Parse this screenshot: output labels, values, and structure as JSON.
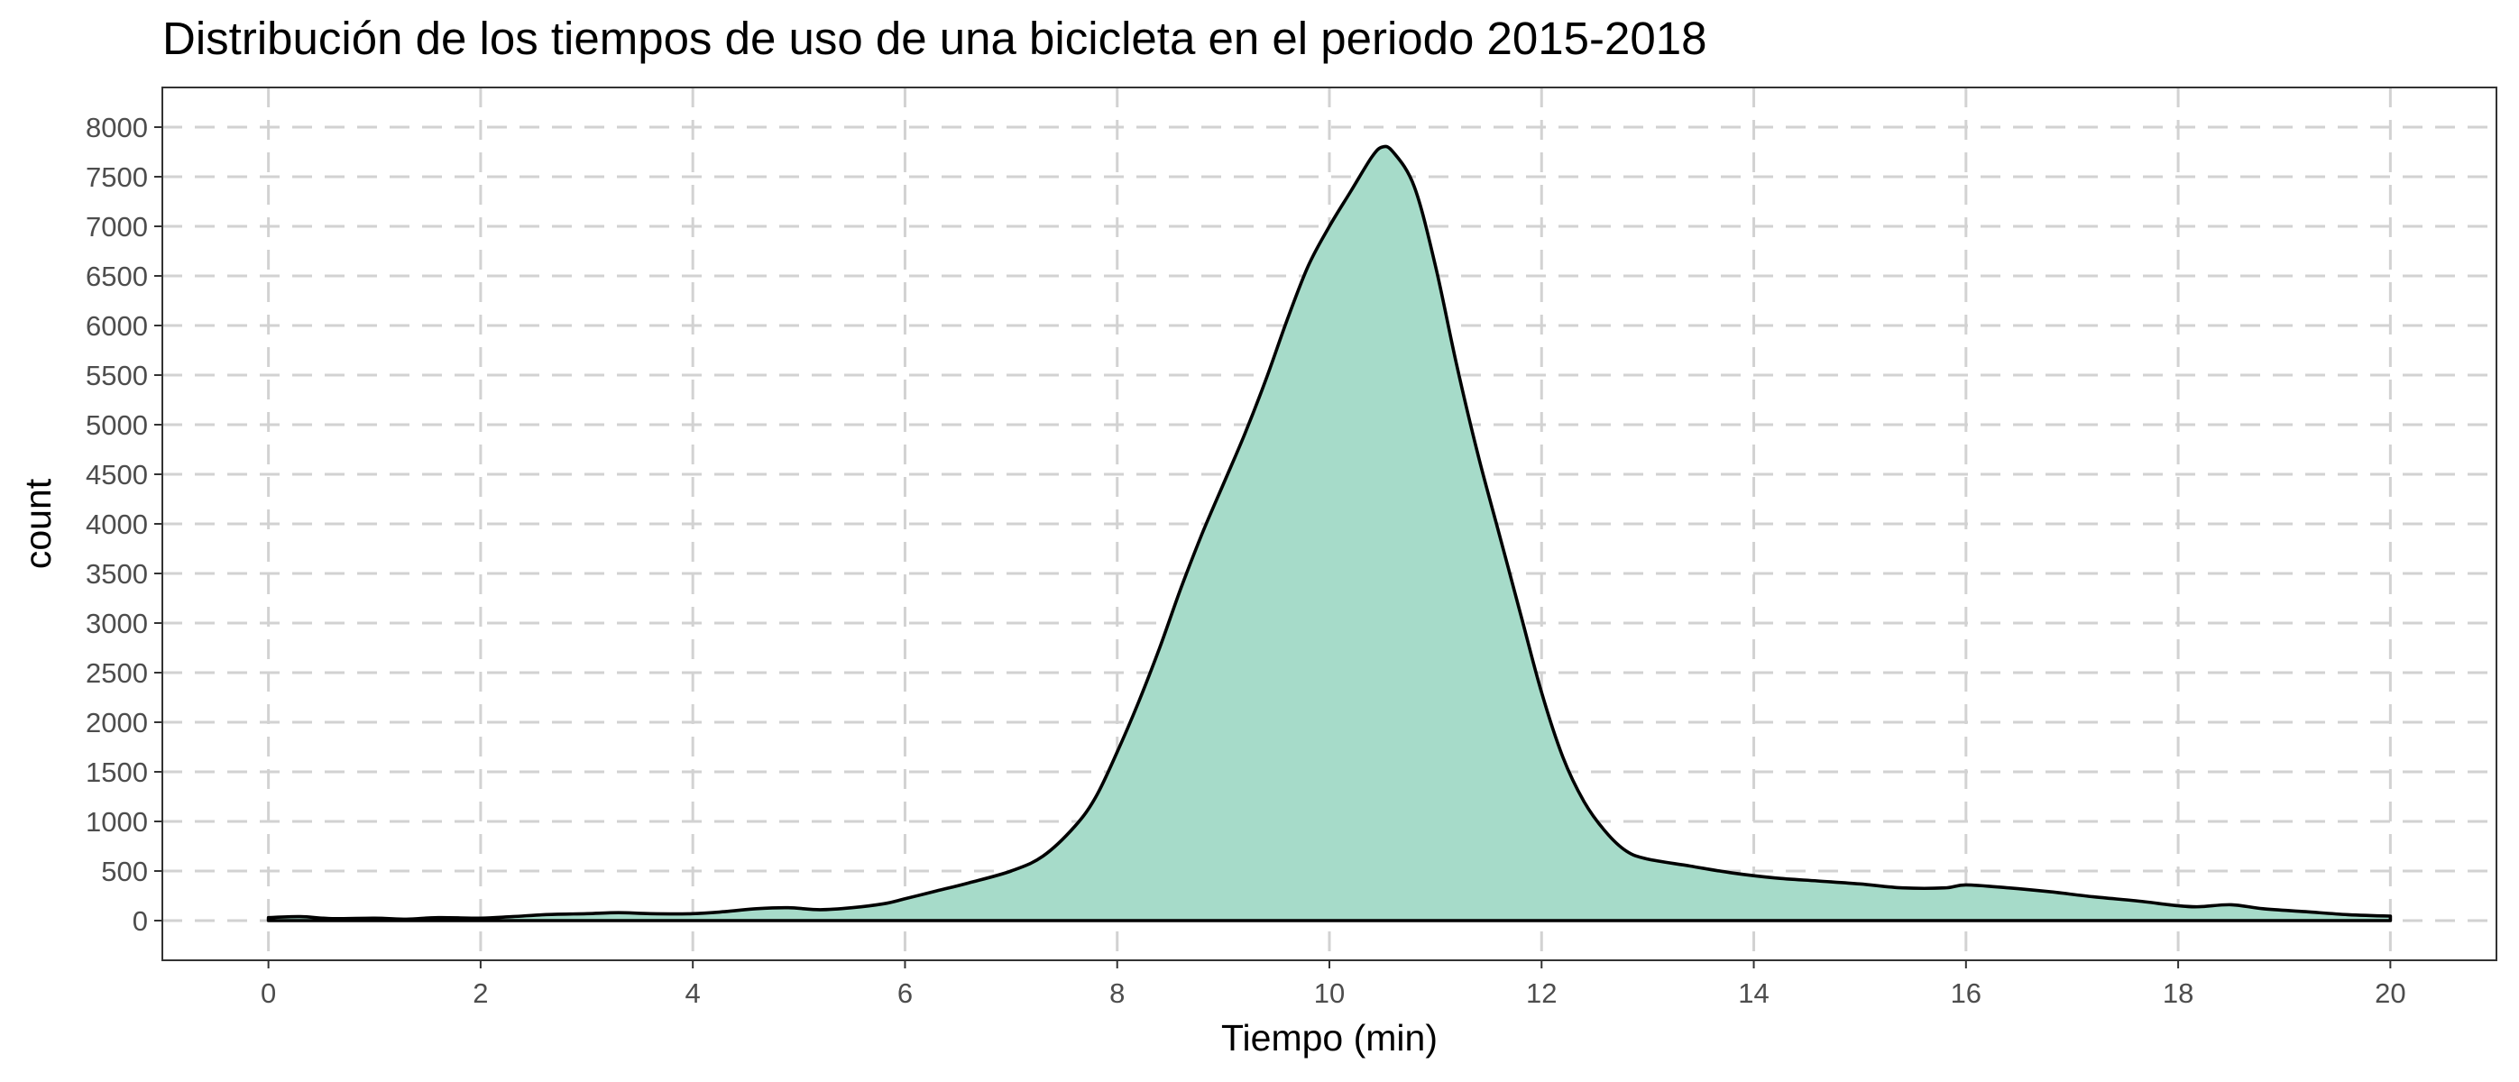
{
  "chart_data": {
    "type": "area",
    "title": "Distribución de los tiempos de uso de una bicicleta en el periodo 2015-2018",
    "xlabel": "Tiempo (min)",
    "ylabel": "count",
    "xlim": [
      -1,
      21
    ],
    "ylim": [
      -400,
      8400
    ],
    "x_ticks": [
      0,
      2,
      4,
      6,
      8,
      10,
      12,
      14,
      16,
      18,
      20
    ],
    "y_ticks": [
      0,
      500,
      1000,
      1500,
      2000,
      2500,
      3000,
      3500,
      4000,
      4500,
      5000,
      5500,
      6000,
      6500,
      7000,
      7500,
      8000
    ],
    "grid": true,
    "legend": "none",
    "fill_color": "#a6dbc9",
    "line_color": "#000000",
    "series": [
      {
        "x": [
          0,
          0.3,
          0.6,
          1,
          1.3,
          1.6,
          2,
          2.3,
          2.6,
          3,
          3.3,
          3.6,
          4,
          4.3,
          4.6,
          4.9,
          5.2,
          5.5,
          5.8,
          6,
          6.3,
          6.6,
          7,
          7.3,
          7.6,
          7.8,
          8,
          8.2,
          8.4,
          8.6,
          8.8,
          9,
          9.2,
          9.4,
          9.6,
          9.8,
          10,
          10.2,
          10.4,
          10.5,
          10.6,
          10.8,
          11,
          11.2,
          11.4,
          11.6,
          11.8,
          12,
          12.2,
          12.4,
          12.6,
          12.8,
          13,
          13.4,
          13.8,
          14.2,
          14.6,
          15,
          15.4,
          15.8,
          16,
          16.4,
          16.8,
          17.2,
          17.6,
          18,
          18.2,
          18.5,
          18.8,
          19.2,
          19.6,
          20
        ],
        "y": [
          30,
          40,
          20,
          25,
          15,
          30,
          25,
          40,
          60,
          70,
          80,
          70,
          70,
          90,
          120,
          130,
          110,
          130,
          170,
          220,
          300,
          380,
          500,
          650,
          950,
          1250,
          1700,
          2200,
          2750,
          3350,
          3900,
          4400,
          4900,
          5450,
          6050,
          6600,
          7000,
          7350,
          7700,
          7800,
          7750,
          7400,
          6600,
          5600,
          4700,
          3900,
          3100,
          2300,
          1650,
          1200,
          900,
          700,
          620,
          550,
          480,
          430,
          400,
          370,
          330,
          330,
          360,
          330,
          290,
          240,
          200,
          150,
          140,
          160,
          120,
          90,
          60,
          45
        ]
      }
    ]
  }
}
